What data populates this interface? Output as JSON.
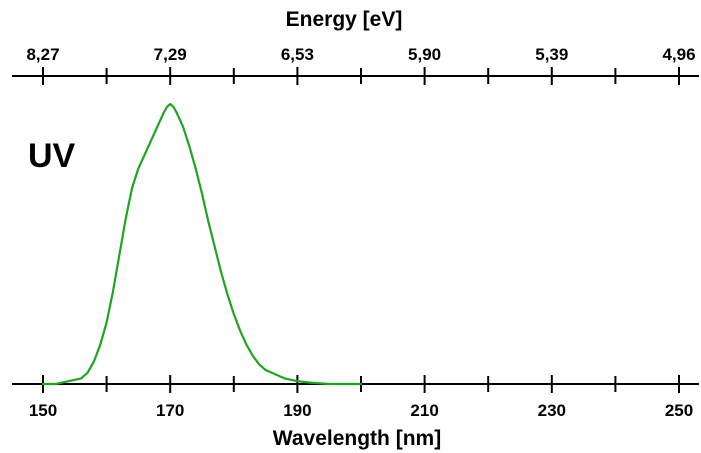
{
  "chart_data": {
    "type": "line",
    "annotation": "UV",
    "xlabel": "Wavelength [nm]",
    "x2label": "Energy [eV]",
    "xlim": [
      150,
      250
    ],
    "ylim": [
      0,
      1.02
    ],
    "x_ticks": [
      "150",
      "170",
      "190",
      "210",
      "230",
      "250"
    ],
    "x_tick_values": [
      150,
      170,
      190,
      210,
      230,
      250
    ],
    "x_minor_tick_values": [
      160,
      180,
      200,
      220,
      240
    ],
    "top_ticks": [
      "8,27",
      "7,29",
      "6,53",
      "5,90",
      "5,39",
      "4,96"
    ],
    "top_tick_values": [
      150,
      170,
      190,
      210,
      230,
      250
    ],
    "top_minor_tick_values": [
      160,
      180,
      200,
      220,
      240
    ],
    "grid": false,
    "series": [
      {
        "color": "#1fa51f",
        "x": [
          150,
          152,
          154,
          156,
          157,
          158,
          159,
          160,
          161,
          162,
          163,
          164,
          165,
          166,
          167,
          168,
          169,
          169.5,
          170,
          170.5,
          171,
          172,
          173,
          174,
          175,
          176,
          177,
          178,
          179,
          180,
          181,
          182,
          183,
          184,
          185,
          186,
          187,
          188,
          190,
          192,
          195,
          200
        ],
        "y": [
          0.0,
          0.0,
          0.01,
          0.02,
          0.04,
          0.08,
          0.14,
          0.22,
          0.33,
          0.46,
          0.59,
          0.7,
          0.77,
          0.82,
          0.87,
          0.92,
          0.97,
          0.99,
          1.0,
          0.99,
          0.97,
          0.92,
          0.85,
          0.77,
          0.68,
          0.58,
          0.49,
          0.4,
          0.32,
          0.25,
          0.19,
          0.14,
          0.1,
          0.07,
          0.05,
          0.04,
          0.03,
          0.02,
          0.01,
          0.005,
          0.0,
          0.0
        ]
      }
    ]
  }
}
